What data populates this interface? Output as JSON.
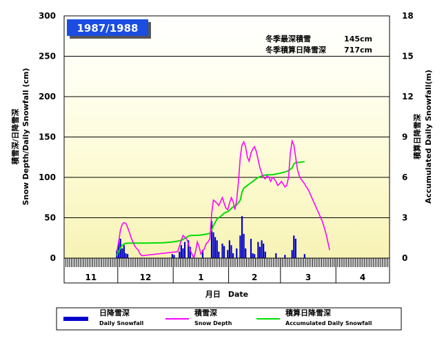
{
  "chart_data": {
    "type": "bar+line",
    "season_label": "1987/1988",
    "notes": [
      {
        "label": "冬季最深積雪",
        "value": "145cm"
      },
      {
        "label": "冬季積算日降雪深",
        "value": "717cm"
      }
    ],
    "y_left": {
      "label_jp": "積雪深/日降雪深",
      "label_en": "Snow Depth/Daily Snowfall (cm)",
      "range": [
        0,
        300
      ],
      "ticks": [
        0,
        50,
        100,
        150,
        200,
        250,
        300
      ]
    },
    "y_right": {
      "label_jp": "積算日降雪深",
      "label_en": "Accumulated Daily Snowfall(m)",
      "range": [
        0,
        18
      ],
      "ticks": [
        0,
        3,
        6,
        9,
        12,
        15,
        18
      ]
    },
    "x_axis": {
      "label": "月日　Date",
      "days_total": 182,
      "months": [
        "11",
        "12",
        "1",
        "2",
        "3",
        "4"
      ],
      "month_start_days": [
        0,
        30,
        61,
        92,
        121,
        152
      ]
    },
    "legend": [
      {
        "label_jp": "日降雪深",
        "label_en": "Daily Snowfall",
        "color": "#0000cc",
        "kind": "bar"
      },
      {
        "label_jp": "積雪深",
        "label_en": "Snow Depth",
        "color": "#ff00ff",
        "kind": "line"
      },
      {
        "label_jp": "積算日降雪深",
        "label_en": "Accumulated Daily Snowfall",
        "color": "#00dd00",
        "kind": "line"
      }
    ],
    "series": {
      "daily_snowfall": [
        [
          29,
          10
        ],
        [
          30,
          20
        ],
        [
          31,
          24
        ],
        [
          32,
          12
        ],
        [
          33,
          16
        ],
        [
          34,
          6
        ],
        [
          35,
          5
        ],
        [
          60,
          5
        ],
        [
          61,
          4
        ],
        [
          64,
          8
        ],
        [
          65,
          16
        ],
        [
          66,
          12
        ],
        [
          67,
          20
        ],
        [
          69,
          22
        ],
        [
          70,
          14
        ],
        [
          77,
          10
        ],
        [
          82,
          46
        ],
        [
          83,
          32
        ],
        [
          84,
          26
        ],
        [
          85,
          22
        ],
        [
          86,
          8
        ],
        [
          88,
          18
        ],
        [
          89,
          15
        ],
        [
          91,
          10
        ],
        [
          92,
          22
        ],
        [
          93,
          16
        ],
        [
          94,
          6
        ],
        [
          96,
          12
        ],
        [
          98,
          28
        ],
        [
          99,
          52
        ],
        [
          100,
          30
        ],
        [
          101,
          12
        ],
        [
          104,
          24
        ],
        [
          105,
          6
        ],
        [
          106,
          5
        ],
        [
          108,
          20
        ],
        [
          109,
          14
        ],
        [
          110,
          22
        ],
        [
          111,
          18
        ],
        [
          112,
          8
        ],
        [
          118,
          6
        ],
        [
          123,
          4
        ],
        [
          127,
          10
        ],
        [
          128,
          28
        ],
        [
          129,
          24
        ],
        [
          134,
          5
        ]
      ],
      "snow_depth": [
        [
          29,
          8
        ],
        [
          30,
          20
        ],
        [
          31,
          35
        ],
        [
          32,
          42
        ],
        [
          33,
          44
        ],
        [
          34,
          43
        ],
        [
          35,
          38
        ],
        [
          36,
          32
        ],
        [
          37,
          25
        ],
        [
          38,
          20
        ],
        [
          39,
          15
        ],
        [
          40,
          12
        ],
        [
          41,
          10
        ],
        [
          42,
          5
        ],
        [
          43,
          3
        ],
        [
          63,
          8
        ],
        [
          64,
          15
        ],
        [
          65,
          22
        ],
        [
          66,
          28
        ],
        [
          67,
          26
        ],
        [
          68,
          24
        ],
        [
          69,
          18
        ],
        [
          70,
          10
        ],
        [
          71,
          5
        ],
        [
          72,
          0
        ],
        [
          73,
          8
        ],
        [
          74,
          20
        ],
        [
          75,
          14
        ],
        [
          76,
          5
        ],
        [
          78,
          12
        ],
        [
          79,
          18
        ],
        [
          80,
          20
        ],
        [
          81,
          24
        ],
        [
          82,
          55
        ],
        [
          83,
          72
        ],
        [
          84,
          70
        ],
        [
          85,
          68
        ],
        [
          86,
          65
        ],
        [
          87,
          70
        ],
        [
          88,
          75
        ],
        [
          89,
          68
        ],
        [
          90,
          62
        ],
        [
          91,
          60
        ],
        [
          92,
          68
        ],
        [
          93,
          75
        ],
        [
          94,
          70
        ],
        [
          95,
          60
        ],
        [
          96,
          72
        ],
        [
          97,
          95
        ],
        [
          98,
          125
        ],
        [
          99,
          140
        ],
        [
          100,
          144
        ],
        [
          101,
          138
        ],
        [
          102,
          125
        ],
        [
          103,
          120
        ],
        [
          104,
          130
        ],
        [
          105,
          135
        ],
        [
          106,
          138
        ],
        [
          107,
          132
        ],
        [
          108,
          122
        ],
        [
          109,
          112
        ],
        [
          110,
          105
        ],
        [
          111,
          100
        ],
        [
          112,
          98
        ],
        [
          113,
          102
        ],
        [
          114,
          100
        ],
        [
          115,
          95
        ],
        [
          116,
          100
        ],
        [
          117,
          98
        ],
        [
          118,
          95
        ],
        [
          119,
          90
        ],
        [
          120,
          92
        ],
        [
          121,
          95
        ],
        [
          122,
          92
        ],
        [
          123,
          88
        ],
        [
          124,
          90
        ],
        [
          125,
          100
        ],
        [
          126,
          130
        ],
        [
          127,
          145
        ],
        [
          128,
          140
        ],
        [
          129,
          125
        ],
        [
          130,
          110
        ],
        [
          131,
          102
        ],
        [
          132,
          98
        ],
        [
          133,
          95
        ],
        [
          134,
          92
        ],
        [
          135,
          88
        ],
        [
          136,
          85
        ],
        [
          137,
          80
        ],
        [
          138,
          75
        ],
        [
          139,
          70
        ],
        [
          140,
          65
        ],
        [
          141,
          60
        ],
        [
          142,
          55
        ],
        [
          143,
          50
        ],
        [
          144,
          45
        ],
        [
          145,
          38
        ],
        [
          146,
          30
        ],
        [
          147,
          20
        ],
        [
          148,
          10
        ]
      ],
      "accumulated_snowfall": [
        [
          29,
          0.2
        ],
        [
          30,
          0.5
        ],
        [
          31,
          0.75
        ],
        [
          32,
          0.95
        ],
        [
          33,
          1.05
        ],
        [
          34,
          1.1
        ],
        [
          36,
          1.12
        ],
        [
          45,
          1.12
        ],
        [
          55,
          1.14
        ],
        [
          60,
          1.2
        ],
        [
          63,
          1.26
        ],
        [
          65,
          1.32
        ],
        [
          67,
          1.46
        ],
        [
          69,
          1.62
        ],
        [
          70,
          1.68
        ],
        [
          75,
          1.7
        ],
        [
          77,
          1.74
        ],
        [
          79,
          1.78
        ],
        [
          81,
          1.84
        ],
        [
          82,
          2.1
        ],
        [
          83,
          2.4
        ],
        [
          84,
          2.65
        ],
        [
          85,
          2.9
        ],
        [
          86,
          3.0
        ],
        [
          88,
          3.2
        ],
        [
          89,
          3.35
        ],
        [
          91,
          3.45
        ],
        [
          92,
          3.55
        ],
        [
          93,
          3.7
        ],
        [
          94,
          3.8
        ],
        [
          96,
          3.95
        ],
        [
          98,
          4.3
        ],
        [
          99,
          4.9
        ],
        [
          100,
          5.2
        ],
        [
          101,
          5.3
        ],
        [
          104,
          5.6
        ],
        [
          106,
          5.8
        ],
        [
          108,
          6.0
        ],
        [
          110,
          6.1
        ],
        [
          112,
          6.18
        ],
        [
          116,
          6.2
        ],
        [
          118,
          6.25
        ],
        [
          120,
          6.3
        ],
        [
          123,
          6.4
        ],
        [
          125,
          6.5
        ],
        [
          127,
          6.7
        ],
        [
          128,
          7.0
        ],
        [
          129,
          7.1
        ],
        [
          131,
          7.12
        ],
        [
          134,
          7.17
        ]
      ]
    }
  }
}
